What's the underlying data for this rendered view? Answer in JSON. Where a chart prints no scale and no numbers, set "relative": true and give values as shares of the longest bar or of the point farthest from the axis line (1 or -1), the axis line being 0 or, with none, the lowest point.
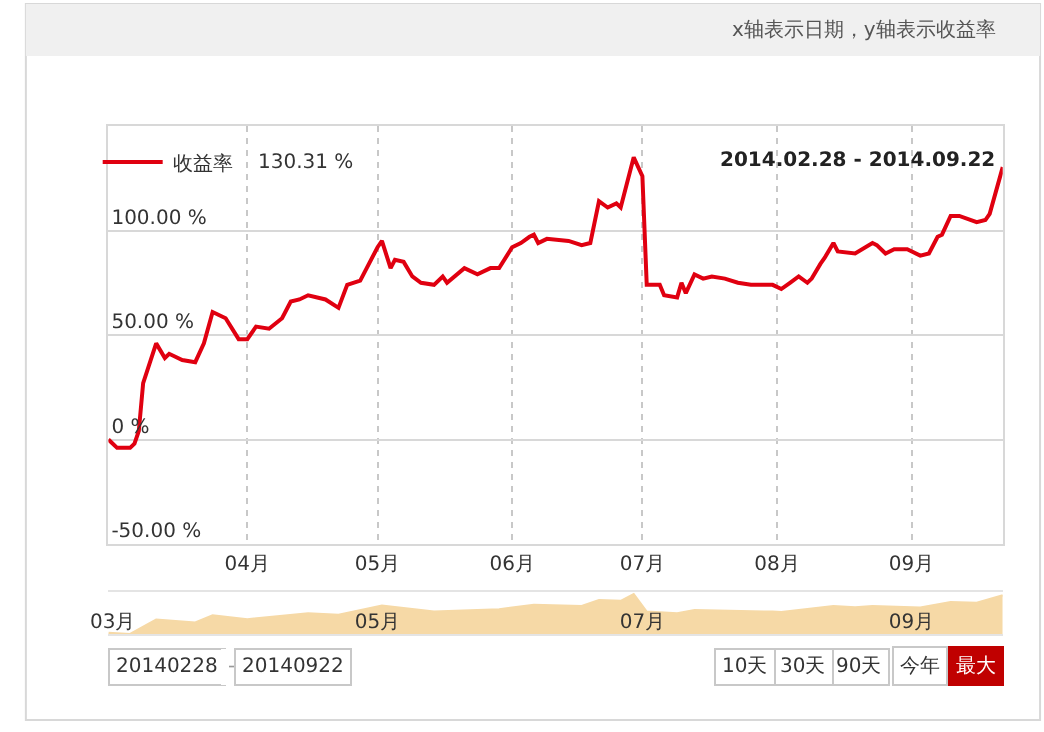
{
  "chart_data": [
    {
      "type": "line",
      "title": "2014.02.28 - 2014.09.22",
      "legend": "top left",
      "grid": true,
      "marker": "none",
      "line_style": "solid",
      "annotations": [
        "x轴表示日期，y轴表示收益率",
        "130.31 %"
      ],
      "xlim": [
        "2014-02-28",
        "2014-09-22"
      ],
      "xticks": [
        {
          "value": "2014-04-01",
          "label": "04月"
        },
        {
          "value": "2014-05-01",
          "label": "05月"
        },
        {
          "value": "2014-06-01",
          "label": "06月"
        },
        {
          "value": "2014-07-01",
          "label": "07月"
        },
        {
          "value": "2014-08-01",
          "label": "08月"
        },
        {
          "value": "2014-09-01",
          "label": "09月"
        }
      ],
      "ylim": [
        -50,
        150
      ],
      "yticks": [
        {
          "value": -50,
          "label": "-50.00 %"
        },
        {
          "value": 0,
          "label": "0 %"
        },
        {
          "value": 50,
          "label": "50.00 %"
        },
        {
          "value": 100,
          "label": "100.00 %"
        }
      ],
      "x": [
        "2014-02-28",
        "2014-03-02",
        "2014-03-05",
        "2014-03-06",
        "2014-03-07",
        "2014-03-08",
        "2014-03-11",
        "2014-03-13",
        "2014-03-14",
        "2014-03-17",
        "2014-03-20",
        "2014-03-22",
        "2014-03-24",
        "2014-03-27",
        "2014-03-30",
        "2014-04-01",
        "2014-04-03",
        "2014-04-06",
        "2014-04-09",
        "2014-04-11",
        "2014-04-13",
        "2014-04-15",
        "2014-04-19",
        "2014-04-22",
        "2014-04-24",
        "2014-04-27",
        "2014-05-01",
        "2014-05-02",
        "2014-05-04",
        "2014-05-05",
        "2014-05-07",
        "2014-05-09",
        "2014-05-11",
        "2014-05-14",
        "2014-05-16",
        "2014-05-17",
        "2014-05-21",
        "2014-05-24",
        "2014-05-27",
        "2014-05-29",
        "2014-06-01",
        "2014-06-03",
        "2014-06-05",
        "2014-06-06",
        "2014-06-07",
        "2014-06-09",
        "2014-06-14",
        "2014-06-17",
        "2014-06-19",
        "2014-06-21",
        "2014-06-23",
        "2014-06-25",
        "2014-06-26",
        "2014-06-29",
        "2014-07-01",
        "2014-07-02",
        "2014-07-05",
        "2014-07-06",
        "2014-07-09",
        "2014-07-10",
        "2014-07-11",
        "2014-07-13",
        "2014-07-15",
        "2014-07-17",
        "2014-07-20",
        "2014-07-23",
        "2014-07-26",
        "2014-07-31",
        "2014-08-02",
        "2014-08-04",
        "2014-08-06",
        "2014-08-08",
        "2014-08-09",
        "2014-08-11",
        "2014-08-12",
        "2014-08-14",
        "2014-08-15",
        "2014-08-19",
        "2014-08-23",
        "2014-08-24",
        "2014-08-26",
        "2014-08-28",
        "2014-08-31",
        "2014-09-03",
        "2014-09-05",
        "2014-09-07",
        "2014-09-08",
        "2014-09-10",
        "2014-09-12",
        "2014-09-16",
        "2014-09-18",
        "2014-09-19",
        "2014-09-22"
      ],
      "series": [
        {
          "name": "收益率",
          "color": "#e00010",
          "values": [
            0,
            -4,
            -4,
            -2,
            4,
            27,
            46,
            39,
            41,
            38,
            37,
            46,
            61,
            58,
            48,
            48,
            54,
            53,
            58,
            66,
            67,
            69,
            67,
            63,
            74,
            76,
            92,
            95,
            82,
            86,
            85,
            78,
            75,
            74,
            78,
            75,
            82,
            79,
            82,
            82,
            92,
            94,
            97,
            98,
            94,
            96,
            95,
            93,
            94,
            114,
            111,
            113,
            111,
            135,
            126,
            74,
            74,
            69,
            68,
            75,
            70,
            79,
            77,
            78,
            77,
            75,
            74,
            74,
            72,
            75,
            78,
            75,
            77,
            84,
            87,
            94,
            90,
            89,
            94,
            93,
            89,
            91,
            91,
            88,
            89,
            97,
            98,
            107,
            107,
            104,
            105,
            108,
            130.31
          ]
        }
      ]
    },
    {
      "type": "area",
      "relative": true,
      "legend": false,
      "annotations": [
        "20140228",
        "-",
        "20140922",
        "10天",
        "30天",
        "90天",
        "今年",
        "最大"
      ],
      "xlim": [
        "2014-02-28",
        "2014-09-22"
      ],
      "xticks": [
        {
          "value": "2014-03-01",
          "label": "03月"
        },
        {
          "value": "2014-05-01",
          "label": "05月"
        },
        {
          "value": "2014-07-01",
          "label": "07月"
        },
        {
          "value": "2014-09-01",
          "label": "09月"
        }
      ],
      "x": [
        "2014-02-28",
        "2014-03-05",
        "2014-03-11",
        "2014-03-20",
        "2014-03-24",
        "2014-04-01",
        "2014-04-15",
        "2014-04-22",
        "2014-05-02",
        "2014-05-14",
        "2014-05-29",
        "2014-06-06",
        "2014-06-17",
        "2014-06-21",
        "2014-06-26",
        "2014-06-29",
        "2014-07-02",
        "2014-07-09",
        "2014-07-13",
        "2014-07-31",
        "2014-08-02",
        "2014-08-14",
        "2014-08-19",
        "2014-08-23",
        "2014-09-03",
        "2014-09-10",
        "2014-09-16",
        "2014-09-22"
      ],
      "series": [
        {
          "color": "#f6d9a6",
          "values": [
            0.03,
            0,
            0.36,
            0.29,
            0.47,
            0.37,
            0.52,
            0.48,
            0.71,
            0.56,
            0.62,
            0.73,
            0.7,
            0.85,
            0.83,
            1,
            0.56,
            0.52,
            0.6,
            0.56,
            0.55,
            0.7,
            0.67,
            0.7,
            0.66,
            0.8,
            0.78,
            0.97
          ]
        }
      ]
    }
  ]
}
